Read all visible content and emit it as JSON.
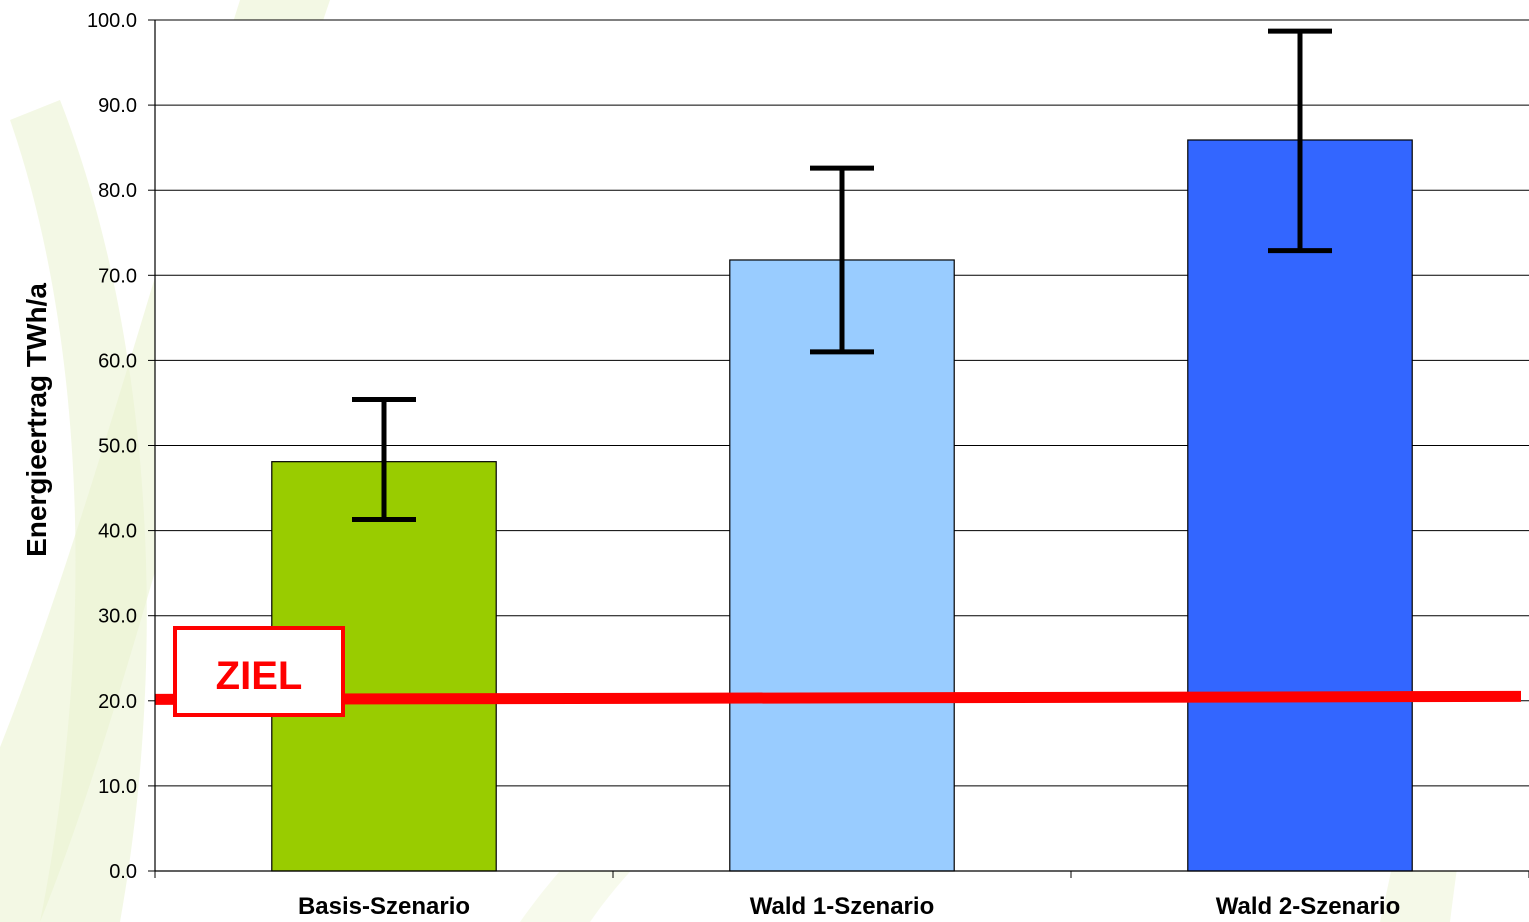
{
  "chart_data": {
    "type": "bar",
    "categories": [
      "Basis-Szenario",
      "Wald 1-Szenario",
      "Wald 2-Szenario"
    ],
    "values": [
      48.1,
      71.8,
      85.9
    ],
    "error_bars": [
      {
        "low": 41.3,
        "high": 55.4
      },
      {
        "low": 61.0,
        "high": 82.6
      },
      {
        "low": 72.9,
        "high": 98.7
      }
    ],
    "bar_colors": [
      "#99cc00",
      "#99ccff",
      "#3366ff"
    ],
    "ylabel": "Energieertrag TWh/a",
    "xlabel": "",
    "ylim": [
      0,
      100
    ],
    "yticks": [
      "0.0",
      "10.0",
      "20.0",
      "30.0",
      "40.0",
      "50.0",
      "60.0",
      "70.0",
      "80.0",
      "90.0",
      "100.0"
    ],
    "grid": true,
    "target": {
      "label": "ZIEL",
      "value": 20.4,
      "color": "#ff0000"
    }
  }
}
